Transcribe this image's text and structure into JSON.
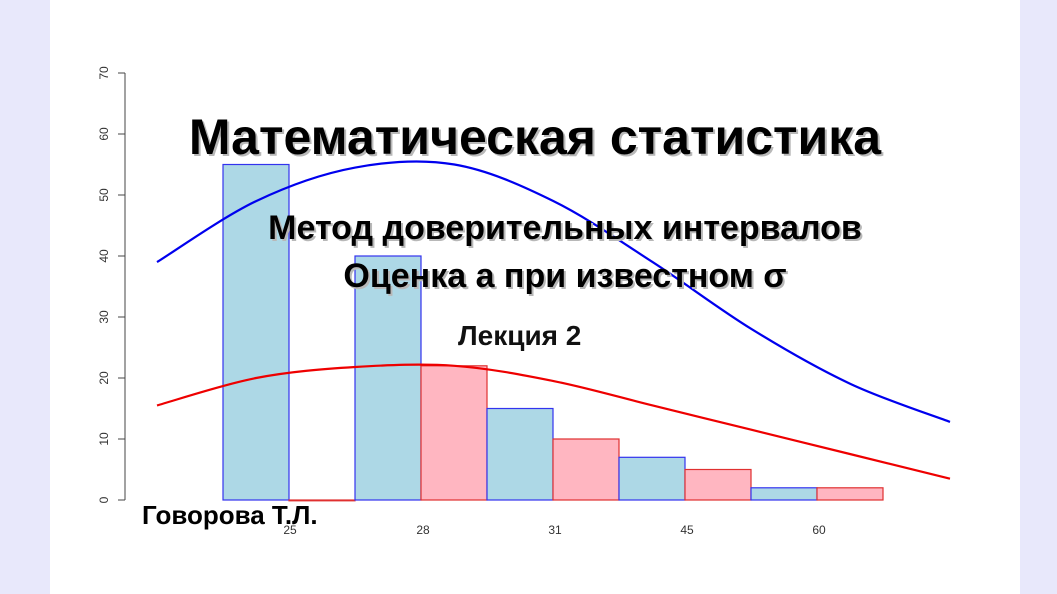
{
  "slide": {
    "title": "Математическая статистика",
    "subtitle_line1": "Метод доверительных интервалов",
    "subtitle_line2": "Оценка a при известном σ",
    "lecture": "Лекция 2",
    "author": "Говорова Т.Л."
  },
  "chart_data": {
    "type": "bar",
    "title": "",
    "xlabel": "",
    "ylabel": "",
    "ylim": [
      0,
      70
    ],
    "yticks": [
      "0",
      "10",
      "20",
      "30",
      "40",
      "50",
      "60",
      "70"
    ],
    "xtick_labels": [
      "25",
      "28",
      "31",
      "45",
      "60"
    ],
    "bars": [
      {
        "value": 55,
        "color": "blue"
      },
      {
        "value": 0,
        "color": "red"
      },
      {
        "value": 40,
        "color": "blue"
      },
      {
        "value": 22,
        "color": "red"
      },
      {
        "value": 15,
        "color": "blue"
      },
      {
        "value": 10,
        "color": "red"
      },
      {
        "value": 7,
        "color": "blue"
      },
      {
        "value": 5,
        "color": "red"
      },
      {
        "value": 2,
        "color": "blue"
      },
      {
        "value": 2,
        "color": "red"
      }
    ],
    "curves": [
      {
        "color": "blue",
        "values": [
          39,
          49,
          54.5,
          55,
          49,
          39,
          28,
          19,
          12.8
        ]
      },
      {
        "color": "red",
        "values": [
          15.5,
          20,
          21.8,
          22,
          19.5,
          15.5,
          11.5,
          7.5,
          3.5
        ]
      }
    ],
    "colors": {
      "blue_fill": "#add8e6",
      "blue_edge": "#3333ee",
      "red_fill": "#ffb6c1",
      "red_edge": "#e03030",
      "blue_curve": "#0000ee",
      "red_curve": "#ee0000"
    },
    "grid": false
  }
}
